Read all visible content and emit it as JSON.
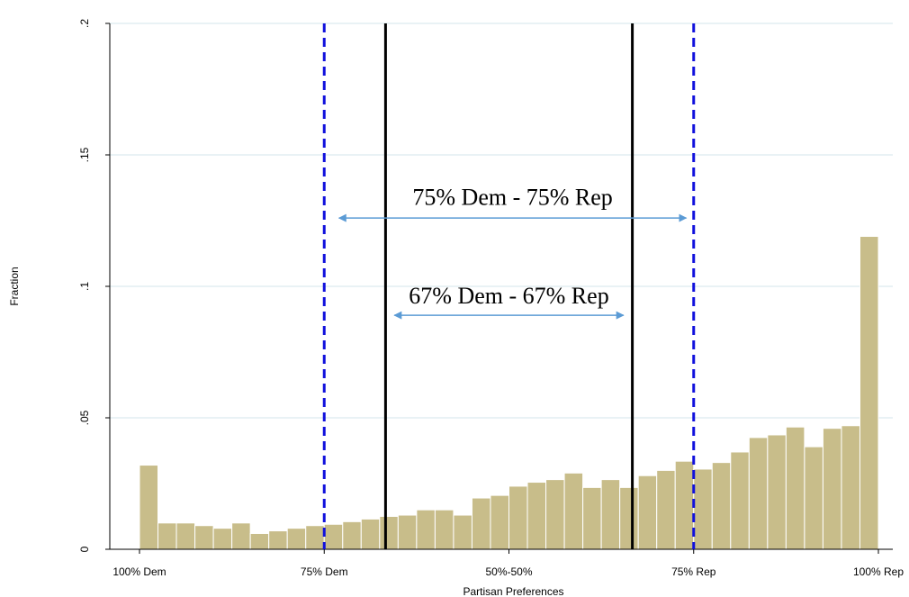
{
  "chart_data": {
    "type": "bar",
    "xlabel": "Partisan Preferences",
    "ylabel": "Fraction",
    "xlim": [
      0,
      1
    ],
    "ylim": [
      0,
      0.2
    ],
    "x_ticks": [
      {
        "value": 0,
        "label": "100% Dem"
      },
      {
        "value": 0.25,
        "label": "75% Dem"
      },
      {
        "value": 0.5,
        "label": "50%-50%"
      },
      {
        "value": 0.75,
        "label": "75% Rep"
      },
      {
        "value": 1,
        "label": "100% Rep"
      }
    ],
    "y_ticks": [
      {
        "value": 0,
        "label": "0"
      },
      {
        "value": 0.05,
        "label": ".05"
      },
      {
        "value": 0.1,
        "label": ".1"
      },
      {
        "value": 0.15,
        "label": ".15"
      },
      {
        "value": 0.2,
        "label": ".2"
      }
    ],
    "grid": "horizontal",
    "bin_width": 0.025,
    "values": [
      0.032,
      0.01,
      0.01,
      0.009,
      0.008,
      0.01,
      0.006,
      0.007,
      0.008,
      0.009,
      0.0095,
      0.0105,
      0.0115,
      0.0125,
      0.013,
      0.015,
      0.015,
      0.013,
      0.0195,
      0.0205,
      0.024,
      0.0255,
      0.0265,
      0.029,
      0.0235,
      0.0265,
      0.0235,
      0.028,
      0.03,
      0.0335,
      0.0305,
      0.033,
      0.037,
      0.0425,
      0.0435,
      0.0465,
      0.039,
      0.046,
      0.047,
      0.119
    ],
    "colors": {
      "bar_fill": "#c8bd8a",
      "bar_stroke": "#ffffff",
      "dashed_line": "#1010dd",
      "solid_line": "#000000",
      "arrow": "#5b9bd5",
      "grid": "#e2edf2"
    },
    "reference_lines": [
      {
        "x": 0.25,
        "style": "dashed"
      },
      {
        "x": 0.333,
        "style": "solid"
      },
      {
        "x": 0.667,
        "style": "solid"
      },
      {
        "x": 0.75,
        "style": "dashed"
      }
    ],
    "annotations": [
      {
        "text": "75% Dem - 75% Rep",
        "y": 0.131,
        "arrow_from": 0.27,
        "arrow_to": 0.74,
        "arrow_y": 0.126
      },
      {
        "text": "67% Dem - 67% Rep",
        "y": 0.0935,
        "arrow_from": 0.345,
        "arrow_to": 0.655,
        "arrow_y": 0.089
      }
    ]
  }
}
